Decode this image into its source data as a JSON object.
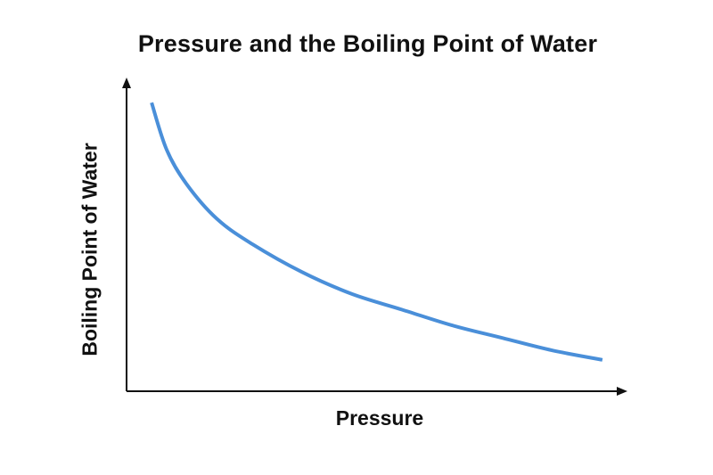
{
  "chart_data": {
    "type": "line",
    "title": "Pressure and the Boiling Point of Water",
    "xlabel": "Pressure",
    "ylabel": "Boiling Point of Water",
    "grid": false,
    "ticks": false,
    "color": "#4A8FD9",
    "x": [
      0.05,
      0.08,
      0.12,
      0.18,
      0.25,
      0.35,
      0.45,
      0.55,
      0.65,
      0.75,
      0.85,
      0.95
    ],
    "y": [
      0.92,
      0.77,
      0.66,
      0.55,
      0.47,
      0.38,
      0.31,
      0.26,
      0.21,
      0.17,
      0.13,
      0.1
    ],
    "xlim": [
      0,
      1
    ],
    "ylim": [
      0,
      1
    ]
  }
}
